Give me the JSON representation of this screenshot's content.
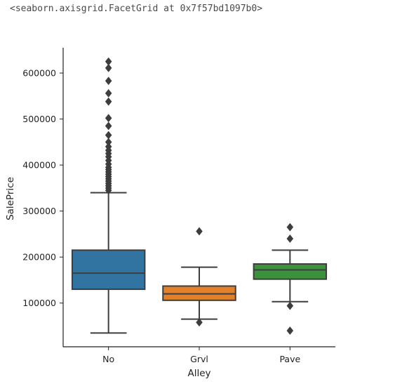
{
  "output_repr": "<seaborn.axisgrid.FacetGrid at 0x7f57bd1097b0>",
  "chart_data": {
    "type": "boxplot",
    "title": "",
    "xlabel": "Alley",
    "ylabel": "SalePrice",
    "ylim": [
      5000,
      655000
    ],
    "yticks": [
      100000,
      200000,
      300000,
      400000,
      500000,
      600000
    ],
    "ytick_labels": [
      "100000",
      "200000",
      "300000",
      "400000",
      "500000",
      "600000"
    ],
    "categories": [
      "No",
      "Grvl",
      "Pave"
    ],
    "colors": [
      "#3274a1",
      "#e1812c",
      "#3a923a"
    ],
    "line_color": "#3d3d3d",
    "grid": false,
    "boxes": [
      {
        "category": "No",
        "whisker_low": 35000,
        "q1": 130000,
        "median": 165000,
        "q3": 215000,
        "whisker_high": 340000,
        "outliers": [
          345000,
          350000,
          355000,
          360000,
          365000,
          370000,
          375000,
          380000,
          385000,
          390000,
          395000,
          402000,
          410000,
          418000,
          425000,
          432000,
          440000,
          450000,
          465000,
          485000,
          502000,
          538000,
          556000,
          583000,
          611000,
          625000
        ]
      },
      {
        "category": "Grvl",
        "whisker_low": 65000,
        "q1": 106000,
        "median": 120000,
        "q3": 137000,
        "whisker_high": 178000,
        "outliers": [
          58000,
          256000
        ]
      },
      {
        "category": "Pave",
        "whisker_low": 103000,
        "q1": 152000,
        "median": 172000,
        "q3": 185000,
        "whisker_high": 215000,
        "outliers": [
          40000,
          94000,
          240000,
          265000
        ]
      }
    ]
  }
}
